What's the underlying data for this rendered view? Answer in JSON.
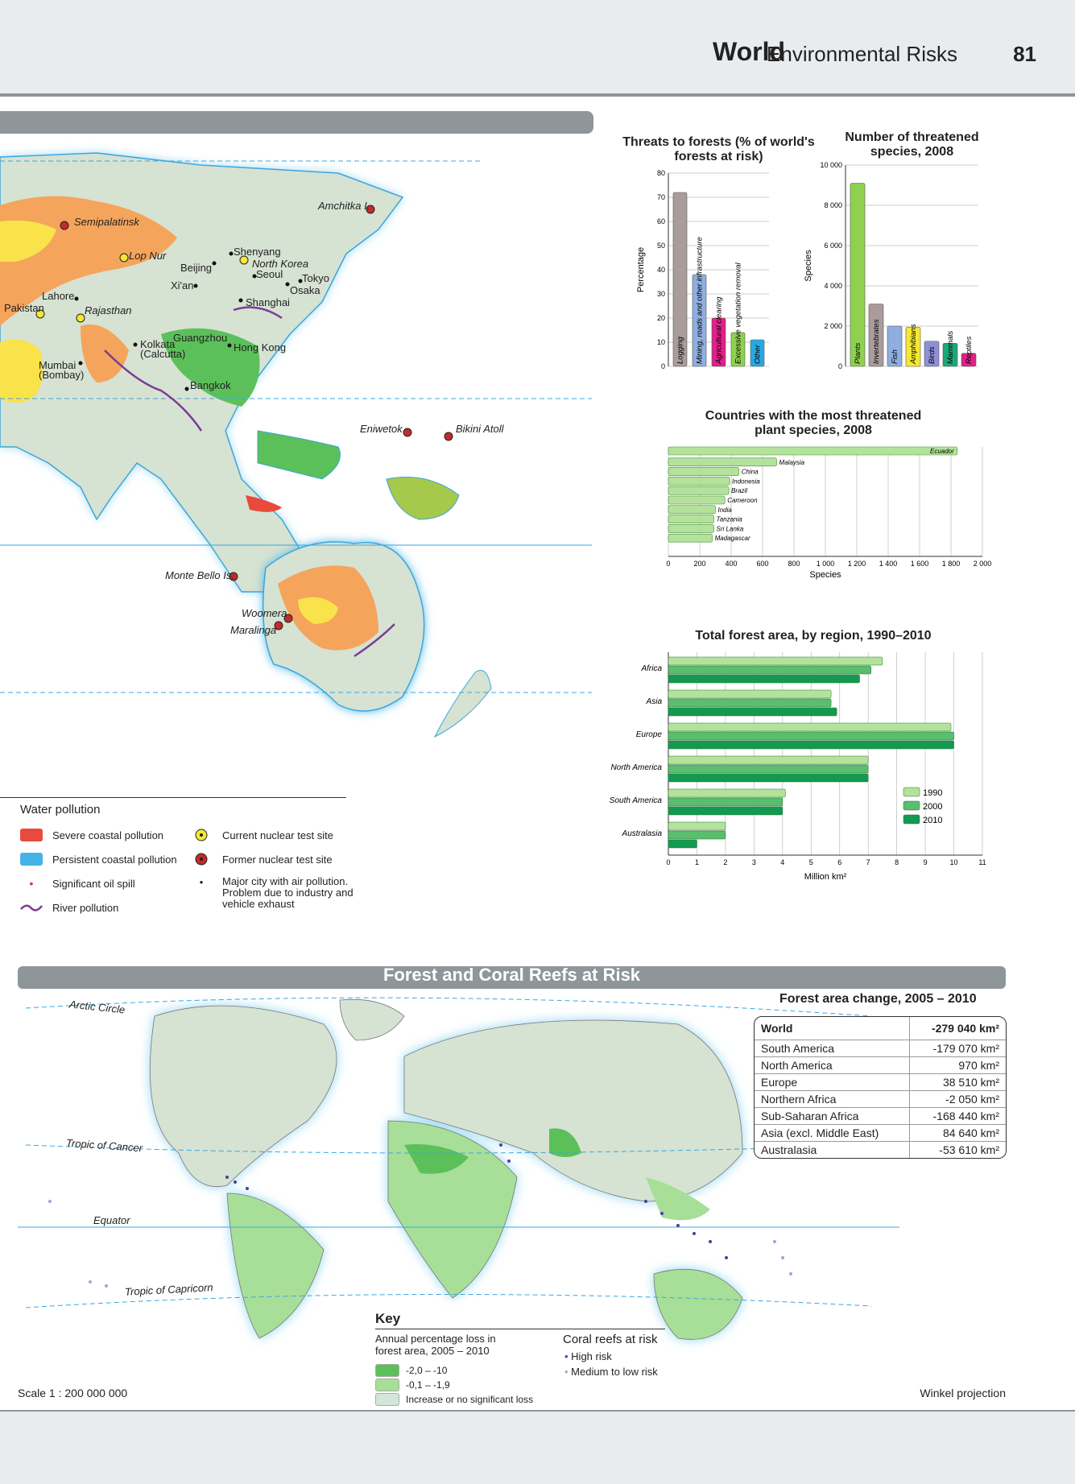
{
  "header": {
    "title": "World",
    "subtitle": "Environmental Risks",
    "page_number": "81"
  },
  "asia_map": {
    "places": [
      "Semipalatinsk",
      "Lop Nur",
      "Amchitka I.",
      "Shenyang",
      "North Korea",
      "Seoul",
      "Beijing",
      "Tokyo",
      "Xi'an",
      "Osaka",
      "Lahore",
      "Shanghai",
      "Pakistan",
      "Rajasthan",
      "Guangzhou",
      "Kolkata (Calcutta)",
      "Hong Kong",
      "Mumbai (Bombay)",
      "Bangkok",
      "Eniwetok",
      "Bikini Atoll",
      "Monte Bello Is.",
      "Woomera",
      "Maralinga"
    ]
  },
  "water_legend": {
    "title": "Water pollution",
    "items": [
      {
        "label": "Severe coastal pollution",
        "color": "#e84a3c"
      },
      {
        "label": "Persistent coastal pollution",
        "color": "#45b3e7"
      },
      {
        "label": "Significant oil spill",
        "color": "#e0218a"
      },
      {
        "label": "River pollution",
        "color": "#7b3c96"
      },
      {
        "label": "Current nuclear test site",
        "icon": "nuclear-icon"
      },
      {
        "label": "Former nuclear test site",
        "icon": "nuclear-former-icon"
      },
      {
        "label": "Major city with air pollution. Problem due to industry and vehicle exhaust",
        "icon": "city-dot-icon"
      }
    ]
  },
  "chart_data": [
    {
      "type": "bar",
      "title": "Threats to forests (% of world's forests at risk)",
      "ylabel": "Percentage",
      "ylim": [
        0,
        80
      ],
      "yticks": [
        0,
        10,
        20,
        30,
        40,
        50,
        60,
        70,
        80
      ],
      "categories": [
        "Logging",
        "Mining, roads and other infrastructure",
        "Agricultural clearing",
        "Excessive vegetation removal",
        "Other"
      ],
      "values": [
        72,
        38,
        20,
        14,
        11
      ],
      "colors": [
        "#a99c9b",
        "#8faee0",
        "#e0218a",
        "#8fd14f",
        "#29a8e0"
      ]
    },
    {
      "type": "bar",
      "title": "Number of threatened species, 2008",
      "ylabel": "Species",
      "ylim": [
        0,
        10000
      ],
      "yticks": [
        "0",
        "2 000",
        "4 000",
        "6 000",
        "8 000",
        "10 000"
      ],
      "categories": [
        "Plants",
        "Invertebrates",
        "Fish",
        "Amphibians",
        "Birds",
        "Mammals",
        "Reptiles"
      ],
      "values": [
        9100,
        3100,
        2000,
        1950,
        1250,
        1150,
        650
      ],
      "colors": [
        "#8fd14f",
        "#a99c9b",
        "#8faee0",
        "#f5e832",
        "#8f8fd9",
        "#1aa87a",
        "#e0218a"
      ]
    },
    {
      "type": "bar",
      "orientation": "horizontal",
      "title": "Countries with the most threatened plant species, 2008",
      "xlabel": "Species",
      "xlim": [
        0,
        2000
      ],
      "xticks": [
        "0",
        "200",
        "400",
        "600",
        "800",
        "1 000",
        "1 200",
        "1 400",
        "1 600",
        "1 800",
        "2 000"
      ],
      "categories": [
        "Ecuador",
        "Malaysia",
        "China",
        "Indonesia",
        "Brazil",
        "Cameroon",
        "India",
        "Tanzania",
        "Sri Lanka",
        "Madagascar"
      ],
      "values": [
        1840,
        690,
        450,
        390,
        385,
        360,
        300,
        290,
        290,
        280
      ]
    },
    {
      "type": "bar",
      "orientation": "horizontal",
      "title": "Total forest area, by region, 1990–2010",
      "xlabel": "Million km²",
      "xlim": [
        0,
        11
      ],
      "xticks": [
        "0",
        "1",
        "2",
        "3",
        "4",
        "5",
        "6",
        "7",
        "8",
        "9",
        "10",
        "11"
      ],
      "categories": [
        "Africa",
        "Asia",
        "Europe",
        "North America",
        "South America",
        "Australasia"
      ],
      "series": [
        {
          "name": "1990",
          "color": "#b3e39a",
          "values": [
            7.5,
            5.7,
            9.9,
            7.0,
            4.1,
            2.0
          ]
        },
        {
          "name": "2000",
          "color": "#59be6e",
          "values": [
            7.1,
            5.7,
            10.0,
            7.0,
            4.0,
            2.0
          ]
        },
        {
          "name": "2010",
          "color": "#139a50",
          "values": [
            6.7,
            5.9,
            10.0,
            7.0,
            4.0,
            1.0
          ]
        }
      ]
    }
  ],
  "forest_section": {
    "title": "Forest and Coral Reefs at Risk",
    "lines": [
      "Arctic Circle",
      "Tropic of Cancer",
      "Equator",
      "Tropic of Capricorn"
    ],
    "table_title": "Forest area change, 2005 – 2010",
    "table": [
      [
        "World",
        "-279 040 km²"
      ],
      [
        "South America",
        "-179 070 km²"
      ],
      [
        "North America",
        "970 km²"
      ],
      [
        "Europe",
        "38 510 km²"
      ],
      [
        "Northern Africa",
        "-2 050 km²"
      ],
      [
        "Sub-Saharan Africa",
        "-168 440 km²"
      ],
      [
        "Asia (excl. Middle East)",
        "84 640 km²"
      ],
      [
        "Australasia",
        "-53 610 km²"
      ]
    ],
    "key": {
      "title": "Key",
      "loss_title": "Annual percentage loss in forest area, 2005 – 2010",
      "loss_items": [
        {
          "label": "-2,0 – -10",
          "color": "#5cc05a"
        },
        {
          "label": "-0,1 – -1,9",
          "color": "#a8df98"
        },
        {
          "label": "Increase or no significant loss",
          "color": "#d3e6d9"
        }
      ],
      "coral_title": "Coral reefs at risk",
      "coral_items": [
        {
          "label": "High risk",
          "color": "#4a3f9e"
        },
        {
          "label": "Medium to low risk",
          "color": "#a89fd9"
        }
      ]
    },
    "scale": "Scale 1 : 200 000 000",
    "projection": "Winkel projection"
  }
}
